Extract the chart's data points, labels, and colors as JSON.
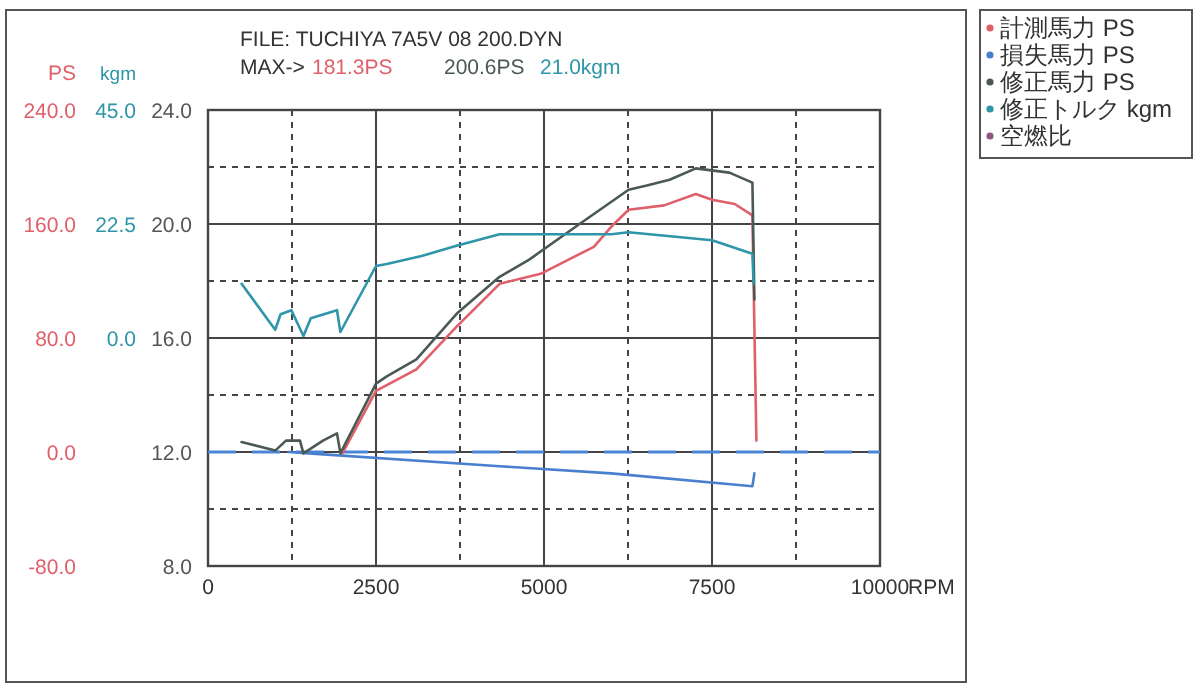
{
  "chart_data": {
    "type": "line",
    "title": "FILE: TUCHIYA 7A5V 08 200.DYN",
    "subtitle": "MAX->",
    "annotations": [
      "181.3PS",
      "200.6PS",
      "21.0kgm"
    ],
    "xlabel": "RPM",
    "ylabel": "PS",
    "y2label": "kgm",
    "xlim": [
      0,
      10000
    ],
    "xticks": [
      0,
      {
        "value": 1250,
        "label": null
      },
      2500,
      {
        "value": 3750,
        "label": null
      },
      5000,
      {
        "value": 6250,
        "label": null
      },
      7500,
      {
        "value": 8750,
        "label": null
      },
      10000
    ],
    "ylim": [
      -80,
      240
    ],
    "yticks": [
      {
        "value": -80,
        "label": "-80.0"
      },
      {
        "value": 0,
        "label": "0.0"
      },
      {
        "value": 80,
        "label": "80.0"
      },
      {
        "value": 160,
        "label": "160.0"
      },
      {
        "value": 240,
        "label": "240.0"
      }
    ],
    "y2lim": [
      -45,
      45
    ],
    "y2ticks": [
      {
        "value": 0,
        "label": "0.0"
      },
      {
        "value": 22.5,
        "label": "22.5"
      },
      {
        "value": 45,
        "label": "45.0"
      }
    ],
    "y3lim": [
      8,
      24
    ],
    "y3ticks": [
      {
        "value": 8,
        "label": "8.0"
      },
      {
        "value": 10,
        "label": null
      },
      {
        "value": 12,
        "label": "12.0"
      },
      {
        "value": 14,
        "label": null
      },
      {
        "value": 16,
        "label": "16.0"
      },
      {
        "value": 18,
        "label": null
      },
      {
        "value": 20,
        "label": "20.0"
      },
      {
        "value": 22,
        "label": null
      },
      {
        "value": 24,
        "label": "24.0"
      }
    ],
    "grid": true,
    "legend": "top right",
    "marker": "none",
    "line_style": "solid",
    "ref_lines": [
      {
        "axis": "y",
        "value": 0,
        "label": null,
        "color": "#4a85d8",
        "line_style": "dashed"
      }
    ],
    "series": [
      {
        "name": "計測馬力 PS",
        "color": "#e0606a",
        "x": [
          2000,
          2500,
          3100,
          3700,
          4340,
          4950,
          5740,
          6000,
          6260,
          6790,
          7260,
          7500,
          7840,
          8100,
          8160
        ],
        "values": [
          -1,
          43,
          58,
          88,
          118,
          125,
          144,
          158,
          170,
          173,
          181,
          177,
          174,
          166,
          8
        ]
      },
      {
        "name": "損失馬力 PS",
        "color": "#4a7fd0",
        "x": [
          1200,
          1500,
          4340,
          6000,
          8100,
          8130
        ],
        "values": [
          0,
          -1,
          -10,
          -15,
          -24,
          -15
        ]
      },
      {
        "name": "修正馬力 PS",
        "color": "#4a5a52",
        "x": [
          500,
          1000,
          1160,
          1370,
          1420,
          1710,
          1920,
          1970,
          2500,
          2660,
          3100,
          3700,
          4340,
          4780,
          5470,
          6260,
          6530,
          6870,
          7260,
          7760,
          8100,
          8130
        ],
        "values": [
          7,
          1,
          8,
          8,
          -1,
          8,
          13,
          -1,
          48,
          53,
          65,
          97,
          123,
          135,
          158,
          184,
          187,
          191,
          199,
          196,
          189,
          107
        ]
      },
      {
        "name": "修正トルク kgm",
        "color": "#2f95a8",
        "axis": "y2",
        "x": [
          500,
          1000,
          1080,
          1240,
          1420,
          1530,
          1920,
          1970,
          2500,
          2660,
          3180,
          3700,
          4340,
          5200,
          6000,
          6260,
          7500,
          8100,
          8120
        ],
        "values": [
          10.7,
          1.6,
          4.7,
          5.5,
          0.4,
          3.9,
          5.5,
          1.2,
          14.2,
          14.6,
          16.2,
          18.2,
          20.5,
          20.5,
          20.5,
          20.9,
          19.3,
          16.6,
          10.7
        ]
      },
      {
        "name": "空燃比",
        "color": "#8a5a80",
        "axis": "y3"
      }
    ]
  }
}
